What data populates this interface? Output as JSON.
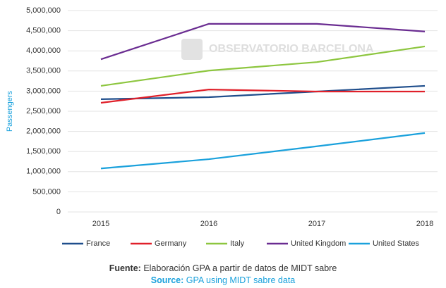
{
  "chart_data": {
    "type": "line",
    "watermark": "OBSERVATORIO BARCELONA",
    "y_label": "Passengers",
    "categories": [
      "2015",
      "2016",
      "2017",
      "2018"
    ],
    "series": [
      {
        "name": "France",
        "color": "#1f4e8c",
        "values": [
          2800000,
          2850000,
          2990000,
          3130000
        ]
      },
      {
        "name": "Germany",
        "color": "#e0202a",
        "values": [
          2710000,
          3040000,
          2990000,
          2990000
        ]
      },
      {
        "name": "Italy",
        "color": "#8dc63f",
        "values": [
          3130000,
          3510000,
          3720000,
          4110000
        ]
      },
      {
        "name": "United Kingdom",
        "color": "#6a2c91",
        "values": [
          3790000,
          4670000,
          4670000,
          4480000
        ]
      },
      {
        "name": "United States",
        "color": "#1aa1dc",
        "values": [
          1080000,
          1310000,
          1630000,
          1960000
        ]
      }
    ],
    "ylim": [
      0,
      5000000
    ],
    "yticks": [
      0,
      {
        "value": 500000,
        "label": "500,000"
      },
      {
        "value": 1000000,
        "label": "1,000,000"
      },
      {
        "value": 1500000,
        "label": "1,500,000"
      },
      {
        "value": 2000000,
        "label": "2,000,000"
      },
      {
        "value": 2500000,
        "label": "2,500,000"
      },
      {
        "value": 3000000,
        "label": "3,000,000"
      },
      {
        "value": 3500000,
        "label": "3,500,000"
      },
      {
        "value": 4000000,
        "label": "4,000,000"
      },
      {
        "value": 4500000,
        "label": "4,500,000"
      },
      {
        "value": 5000000,
        "label": "5,000,000"
      }
    ],
    "grid": true,
    "legend": "bottom",
    "footnote": {
      "fuente_label": "Fuente:",
      "fuente_text": "Elaboración GPA a partir de datos de MIDT sabre",
      "source_label": "Source:",
      "source_text": "GPA using MIDT sabre data"
    }
  }
}
